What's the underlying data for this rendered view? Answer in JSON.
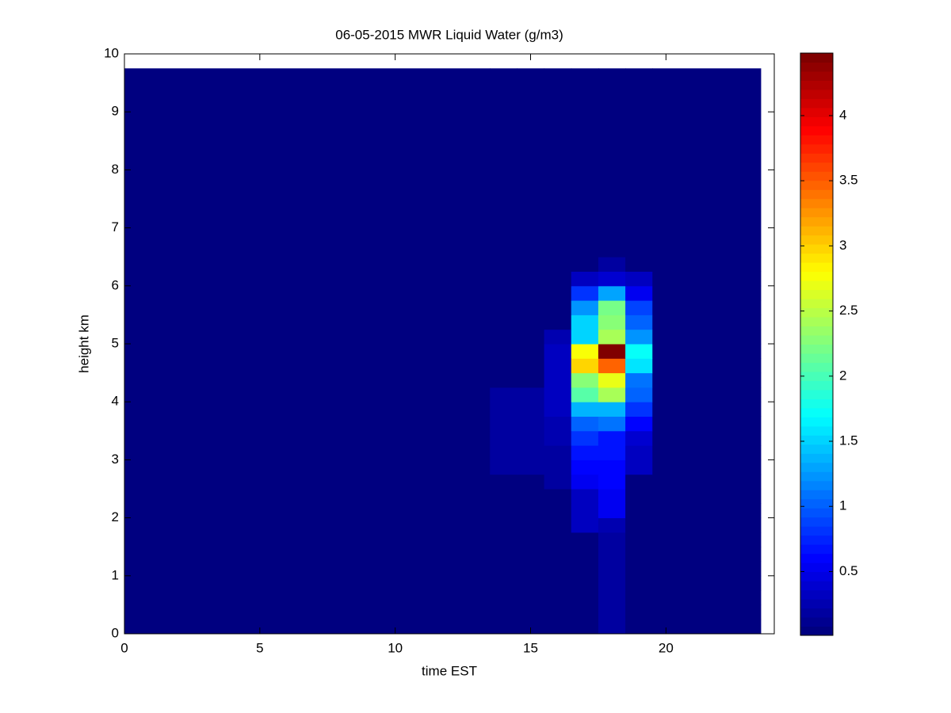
{
  "chart_data": {
    "type": "heatmap",
    "title": "06-05-2015 MWR Liquid Water (g/m3)",
    "x_label": "time EST",
    "y_label": "height km",
    "colormap": "jet",
    "x_edges": [
      0,
      13.5,
      14.5,
      15.5,
      16.5,
      17.5,
      18.5,
      19.5,
      23.5
    ],
    "y_edges": [
      0,
      0.25,
      0.5,
      0.75,
      1,
      1.25,
      1.5,
      1.75,
      2,
      2.25,
      2.5,
      2.75,
      3,
      3.25,
      3.5,
      3.75,
      4,
      4.25,
      4.5,
      4.75,
      5,
      5.25,
      5.5,
      5.75,
      6,
      6.25,
      6.5,
      9.75
    ],
    "z": [
      [
        0.02,
        0.02,
        0.02,
        0.02,
        0.02,
        0.15,
        0.02,
        0.02
      ],
      [
        0.02,
        0.02,
        0.02,
        0.02,
        0.02,
        0.2,
        0.02,
        0.02
      ],
      [
        0.02,
        0.02,
        0.02,
        0.02,
        0.02,
        0.2,
        0.02,
        0.02
      ],
      [
        0.02,
        0.02,
        0.02,
        0.02,
        0.02,
        0.2,
        0.02,
        0.02
      ],
      [
        0.02,
        0.02,
        0.02,
        0.02,
        0.02,
        0.2,
        0.02,
        0.02
      ],
      [
        0.02,
        0.02,
        0.02,
        0.02,
        0.02,
        0.2,
        0.02,
        0.02
      ],
      [
        0.02,
        0.02,
        0.02,
        0.02,
        0.02,
        0.2,
        0.02,
        0.02
      ],
      [
        0.02,
        0.02,
        0.02,
        0.02,
        0.3,
        0.25,
        0.02,
        0.02
      ],
      [
        0.02,
        0.02,
        0.02,
        0.02,
        0.35,
        0.5,
        0.02,
        0.02
      ],
      [
        0.02,
        0.02,
        0.02,
        0.02,
        0.35,
        0.5,
        0.02,
        0.02
      ],
      [
        0.02,
        0.02,
        0.02,
        0.2,
        0.5,
        0.6,
        0.02,
        0.02
      ],
      [
        0.02,
        0.15,
        0.15,
        0.2,
        0.6,
        0.6,
        0.3,
        0.02
      ],
      [
        0.02,
        0.15,
        0.15,
        0.2,
        0.7,
        0.65,
        0.35,
        0.02
      ],
      [
        0.02,
        0.15,
        0.15,
        0.25,
        0.8,
        0.7,
        0.4,
        0.02
      ],
      [
        0.02,
        0.2,
        0.15,
        0.25,
        1.0,
        1.1,
        0.6,
        0.02
      ],
      [
        0.02,
        0.2,
        0.2,
        0.3,
        1.4,
        1.4,
        0.8,
        0.02
      ],
      [
        0.02,
        0.2,
        0.15,
        0.3,
        2.1,
        2.4,
        1.0,
        0.02
      ],
      [
        0.02,
        0.02,
        0.02,
        0.3,
        2.3,
        2.7,
        1.1,
        0.02
      ],
      [
        0.02,
        0.02,
        0.02,
        0.3,
        3.0,
        3.5,
        1.6,
        0.02
      ],
      [
        0.02,
        0.02,
        0.02,
        0.3,
        2.8,
        4.45,
        1.7,
        0.02
      ],
      [
        0.02,
        0.02,
        0.02,
        0.25,
        1.5,
        2.4,
        1.2,
        0.02
      ],
      [
        0.02,
        0.02,
        0.02,
        0.02,
        1.5,
        2.3,
        1.0,
        0.02
      ],
      [
        0.02,
        0.02,
        0.02,
        0.02,
        1.2,
        2.2,
        0.9,
        0.02
      ],
      [
        0.02,
        0.02,
        0.02,
        0.02,
        0.8,
        1.3,
        0.5,
        0.02
      ],
      [
        0.02,
        0.02,
        0.02,
        0.02,
        0.3,
        0.4,
        0.3,
        0.02
      ],
      [
        0.02,
        0.02,
        0.02,
        0.02,
        0.02,
        0.2,
        0.02,
        0.02
      ],
      [
        0.02,
        0.02,
        0.02,
        0.02,
        0.02,
        0.02,
        0.02,
        0.02
      ]
    ],
    "xlim": [
      0,
      24
    ],
    "xticks": [
      0,
      5,
      10,
      15,
      20
    ],
    "ylim": [
      0,
      10
    ],
    "yticks": [
      0,
      1,
      2,
      3,
      4,
      5,
      6,
      7,
      8,
      9,
      10
    ],
    "clim": [
      0.01,
      4.48
    ],
    "cticks": [
      0.5,
      1,
      1.5,
      2,
      2.5,
      3,
      3.5,
      4
    ]
  }
}
